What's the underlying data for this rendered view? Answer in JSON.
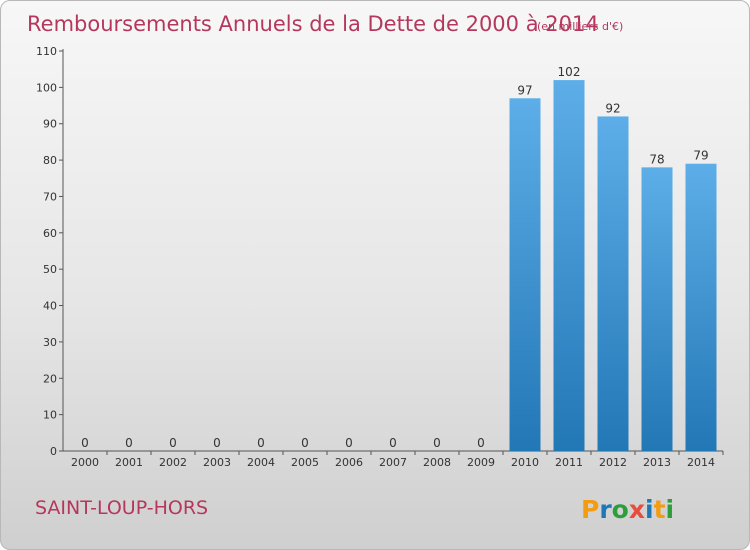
{
  "chart_data": {
    "type": "bar",
    "title": "Remboursements Annuels de la Dette de 2000 à 2014",
    "unit_label": "(en milliers d'€)",
    "categories": [
      "2000",
      "2001",
      "2002",
      "2003",
      "2004",
      "2005",
      "2006",
      "2007",
      "2008",
      "2009",
      "2010",
      "2011",
      "2012",
      "2013",
      "2014"
    ],
    "values": [
      0,
      0,
      0,
      0,
      0,
      0,
      0,
      0,
      0,
      0,
      97,
      102,
      92,
      78,
      79
    ],
    "ylim": [
      0,
      110
    ],
    "yticks": [
      0,
      10,
      20,
      30,
      40,
      50,
      60,
      70,
      80,
      90,
      100,
      110
    ],
    "grid": false,
    "bar_color_top": "#5daee8",
    "bar_color_bottom": "#2277b5"
  },
  "commune": "SAINT-LOUP-HORS",
  "logo": {
    "letters": [
      "P",
      "r",
      "o",
      "x",
      "i",
      "t",
      "i"
    ],
    "colors": [
      "#f39c12",
      "#1f78b4",
      "#2e9e3c",
      "#e74c3c",
      "#1f78b4",
      "#f39c12",
      "#2e9e3c"
    ]
  }
}
